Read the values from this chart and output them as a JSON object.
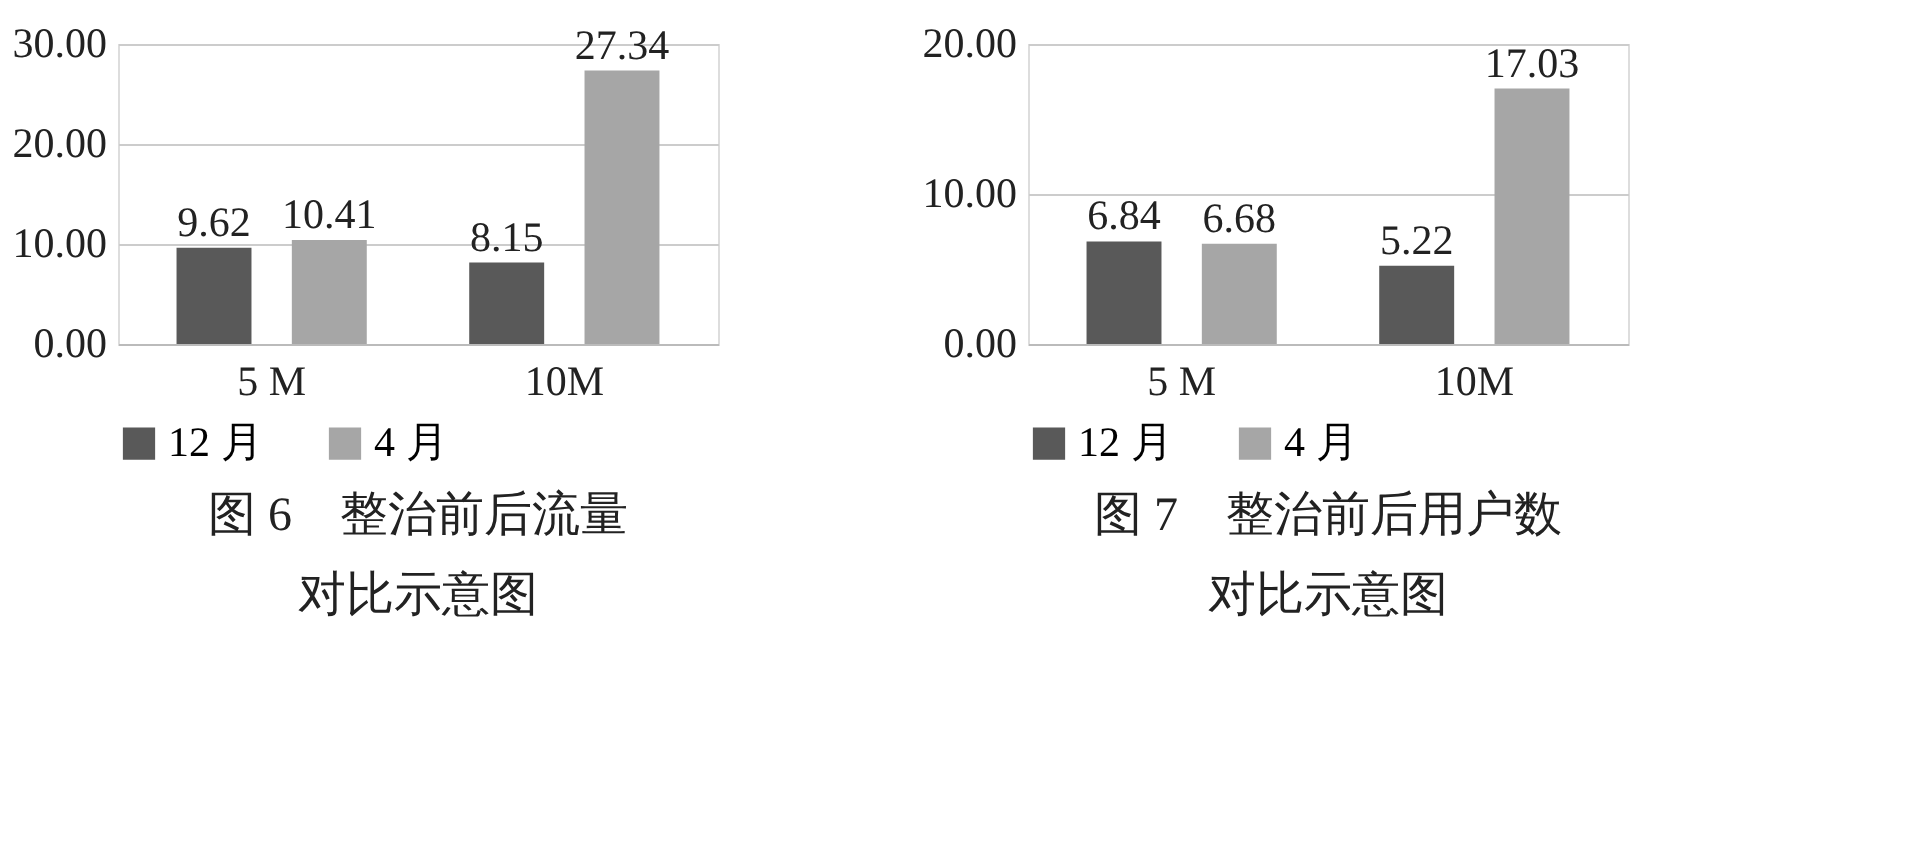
{
  "chart_data": [
    {
      "type": "bar",
      "title": "图 6　整治前后流量对比示意图",
      "categories": [
        "5 M",
        "10M"
      ],
      "series": [
        {
          "name": "12 月",
          "color": "#595959",
          "values": [
            9.62,
            8.15
          ]
        },
        {
          "name": "4 月",
          "color": "#a6a6a6",
          "values": [
            10.41,
            27.34
          ]
        }
      ],
      "ylim": [
        0,
        30
      ],
      "yticks": [
        {
          "value": 0,
          "label": "0.00"
        },
        {
          "value": 10,
          "label": "10.00"
        },
        {
          "value": 20,
          "label": "20.00"
        },
        {
          "value": 30,
          "label": "30.00"
        }
      ],
      "grid": "y",
      "legend": "bottom",
      "data_labels": true
    },
    {
      "type": "bar",
      "title": "图 7　整治前后用户数对比示意图",
      "categories": [
        "5 M",
        "10M"
      ],
      "series": [
        {
          "name": "12 月",
          "color": "#595959",
          "values": [
            6.84,
            5.22
          ]
        },
        {
          "name": "4 月",
          "color": "#a6a6a6",
          "values": [
            6.68,
            17.03
          ]
        }
      ],
      "ylim": [
        0,
        20
      ],
      "yticks": [
        {
          "value": 0,
          "label": "0.00"
        },
        {
          "value": 10,
          "label": "10.00"
        },
        {
          "value": 20,
          "label": "20.00"
        }
      ],
      "grid": "y",
      "legend": "bottom",
      "data_labels": true
    }
  ]
}
